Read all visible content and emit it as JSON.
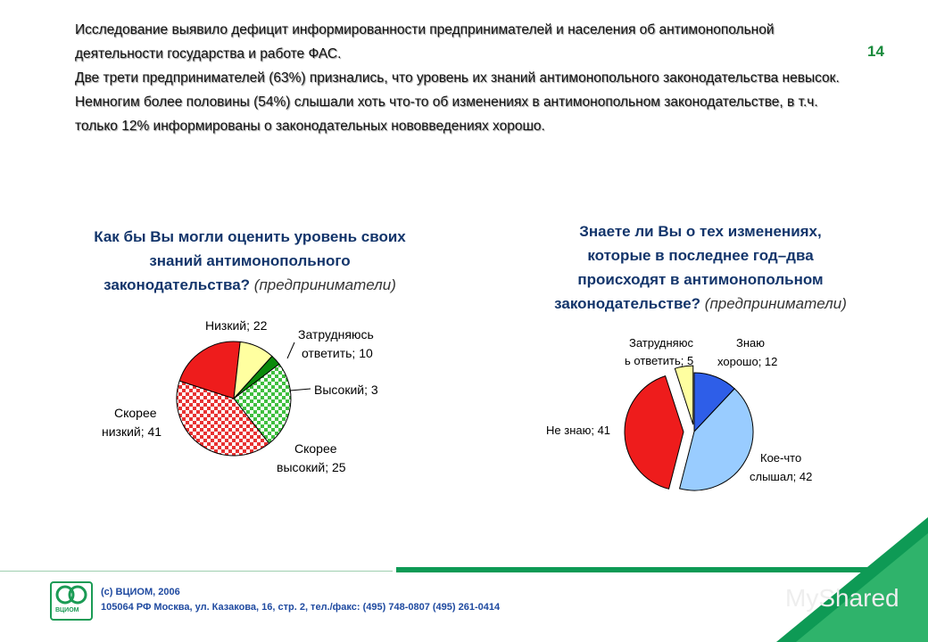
{
  "page_number": "14",
  "intro": {
    "p1": "Исследование выявило дефицит информированности предпринимателей и населения об антимонопольной деятельности государства и работе ФАС.",
    "p2": "Две трети предпринимателей (63%) признались, что уровень их знаний антимонопольного законодательства невысок.",
    "p3": "Немногим более половины (54%) слышали хоть что-то об изменениях в антимонопольном законодательстве, в т.ч. только 12% информированы о законодательных нововведениях хорошо."
  },
  "chart_data": [
    {
      "type": "pie",
      "title": "Как бы Вы могли оценить уровень своих знаний антимонопольного законодательства?",
      "subtitle": "(предприниматели)",
      "slices": [
        {
          "label": "Низкий; 22",
          "value": 22,
          "color": "#ee1c1c"
        },
        {
          "label": "Затрудняюсь ответить; 10",
          "value": 10,
          "color": "#ffffa0"
        },
        {
          "label": "Высокий; 3",
          "value": 3,
          "color": "#0a8a0a"
        },
        {
          "label": "Скорее высокий; 25",
          "value": 25,
          "color": "#3fbf3f",
          "pattern": "checker-green"
        },
        {
          "label": "Скорее низкий; 41",
          "value": 41,
          "color": "#e83232",
          "pattern": "checker-red"
        }
      ]
    },
    {
      "type": "pie",
      "title": "Знаете ли Вы о тех изменениях, которые в последнее год–два происходят в антимонопольном законодательстве?",
      "subtitle": "(предприниматели)",
      "slices": [
        {
          "label": "Знаю хорошо; 12",
          "value": 12,
          "color": "#2e5ee8"
        },
        {
          "label": "Кое-что слышал; 42",
          "value": 42,
          "color": "#99ccff"
        },
        {
          "label": "Не знаю; 41",
          "value": 41,
          "color": "#ee1c1c"
        },
        {
          "label": "Затрудняюсь ответить; 5",
          "value": 5,
          "color": "#ffffa0"
        }
      ]
    }
  ],
  "chart1_title_lines": [
    "Как бы Вы могли оценить уровень своих",
    "знаний антимонопольного",
    "законодательства?"
  ],
  "chart2_title_lines": [
    "Знаете ли Вы о тех изменениях,",
    "которые в последнее год–два",
    "происходят в антимонопольном",
    "законодательстве?"
  ],
  "subtitle": "(предприниматели)",
  "labels1": {
    "nizkiy": "Низкий; 22",
    "zatr_1": "Затрудняюсь",
    "zatr_2": "ответить; 10",
    "vysokiy": "Высокий; 3",
    "sk_nizkiy_1": "Скорее",
    "sk_nizkiy_2": "низкий; 41",
    "sk_vysokiy_1": "Скорее",
    "sk_vysokiy_2": "высокий; 25"
  },
  "labels2": {
    "zatr_1": "Затрудняюс",
    "zatr_2": "ь ответить; 5",
    "znayu_1": "Знаю",
    "znayu_2": "хорошо; 12",
    "ne_znayu": "Не знаю; 41",
    "koe_1": "Кое-что",
    "koe_2": "слышал; 42"
  },
  "footer": {
    "copyright": "(с) ВЦИОМ, 2006",
    "address": "105064 РФ Москва, ул. Казакова, 16, стр. 2, тел./факс: (495) 748-0807 (495) 261-0414",
    "logo_text": "ВЦИОМ"
  },
  "watermark": "MyShared",
  "colors": {
    "title_blue": "#13356b",
    "accent_green": "#0e9a55",
    "footer_blue": "#1f4aa0"
  }
}
